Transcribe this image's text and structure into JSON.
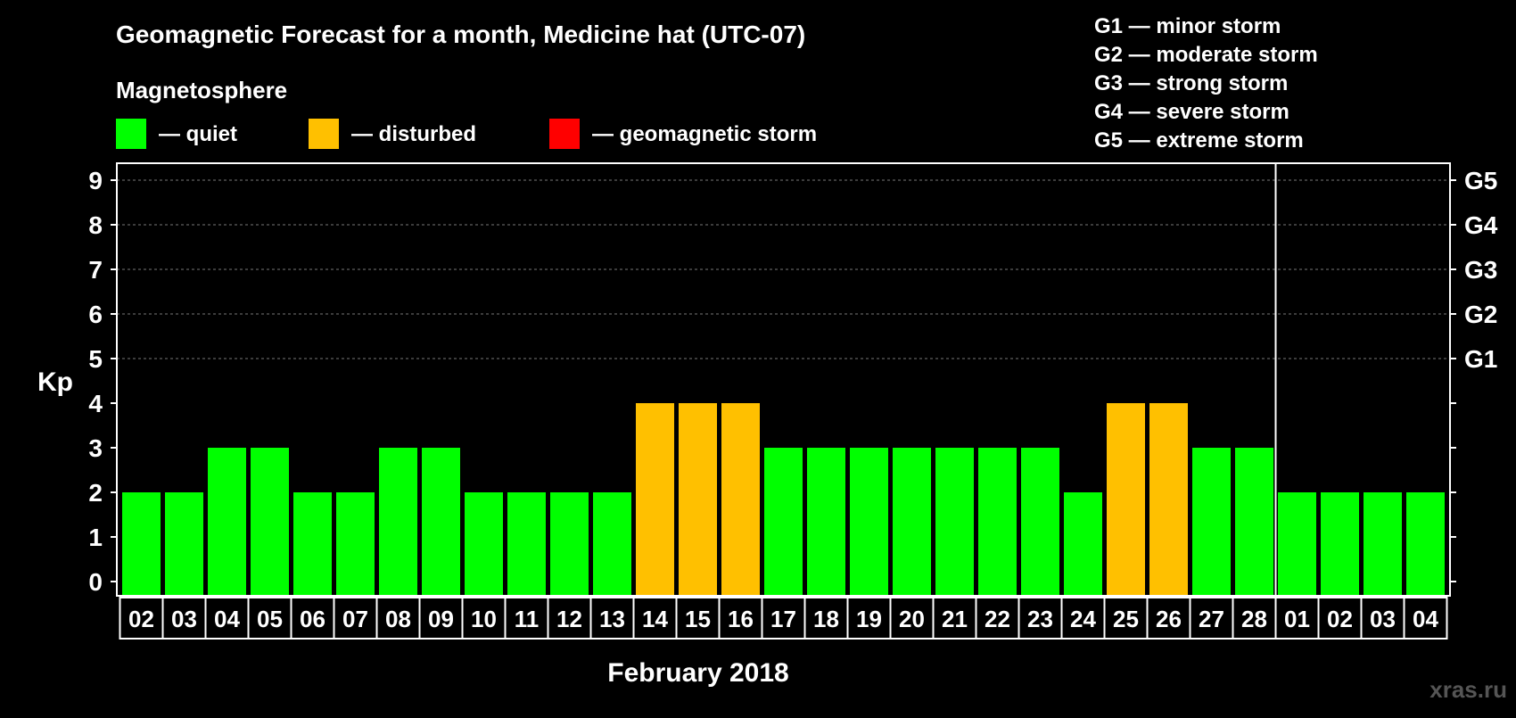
{
  "chart_data": {
    "type": "bar",
    "title": "Geomagnetic Forecast for a month, Medicine hat (UTC-07)",
    "xlabel": "February 2018",
    "ylabel": "Kp",
    "ylim": [
      0,
      9
    ],
    "yticks": [
      "0",
      "1",
      "2",
      "3",
      "4",
      "5",
      "6",
      "7",
      "8",
      "9"
    ],
    "right_axis_labels": [
      {
        "kp": 5,
        "label": "G1"
      },
      {
        "kp": 6,
        "label": "G2"
      },
      {
        "kp": 7,
        "label": "G3"
      },
      {
        "kp": 8,
        "label": "G4"
      },
      {
        "kp": 9,
        "label": "G5"
      }
    ],
    "categories": [
      "02",
      "03",
      "04",
      "05",
      "06",
      "07",
      "08",
      "09",
      "10",
      "11",
      "12",
      "13",
      "14",
      "15",
      "16",
      "17",
      "18",
      "19",
      "20",
      "21",
      "22",
      "23",
      "24",
      "25",
      "26",
      "27",
      "28",
      "01",
      "02",
      "03",
      "04"
    ],
    "values": [
      2,
      2,
      3,
      3,
      2,
      2,
      3,
      3,
      2,
      2,
      2,
      2,
      4,
      4,
      4,
      3,
      3,
      3,
      3,
      3,
      3,
      3,
      2,
      4,
      4,
      3,
      3,
      2,
      2,
      2,
      2
    ],
    "month_divider_after_index": 26,
    "legend_title": "Magnetosphere",
    "legend": [
      {
        "label": "— quiet",
        "color": "#00ff00"
      },
      {
        "label": "— disturbed",
        "color": "#ffc000"
      },
      {
        "label": "— geomagnetic storm",
        "color": "#ff0000"
      }
    ],
    "storm_scale": [
      "G1 — minor storm",
      "G2 — moderate storm",
      "G3 — strong storm",
      "G4 — severe storm",
      "G5 — extreme storm"
    ],
    "colors": {
      "quiet": "#00ff00",
      "disturbed": "#ffc000",
      "storm": "#ff0000"
    },
    "watermark": "xras.ru"
  }
}
